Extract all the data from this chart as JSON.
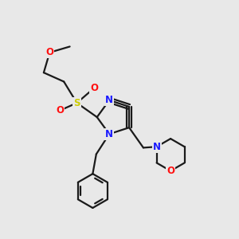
{
  "bg_color": "#e8e8e8",
  "bond_color": "#1a1a1a",
  "bond_width": 1.6,
  "atom_colors": {
    "N": "#1a1aff",
    "O": "#ff1010",
    "S": "#cccc00",
    "C": "#1a1a1a"
  },
  "font_size": 8.5,
  "fig_size": [
    3.0,
    3.0
  ],
  "dpi": 100,
  "xlim": [
    0,
    10
  ],
  "ylim": [
    0,
    10
  ]
}
